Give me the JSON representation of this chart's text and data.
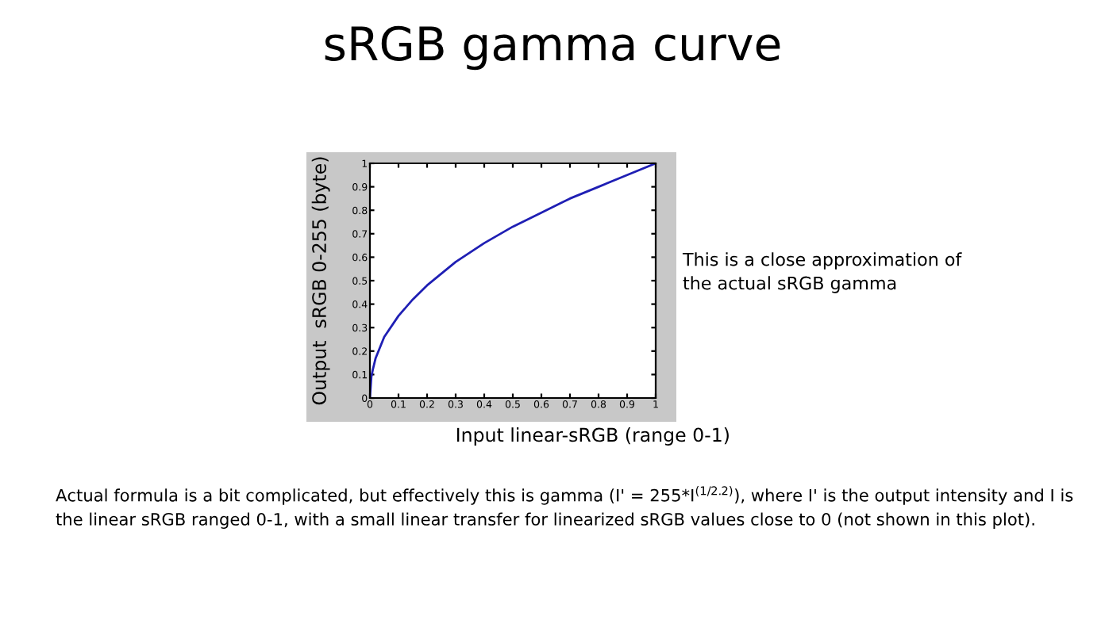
{
  "chart_data": {
    "type": "line",
    "title": "sRGB gamma curve",
    "xlabel": "Input linear-sRGB (range 0-1)",
    "ylabel": "Output  sRGB 0-255 (byte)",
    "x": [
      0,
      0.005,
      0.01,
      0.02,
      0.05,
      0.1,
      0.15,
      0.2,
      0.3,
      0.4,
      0.5,
      0.6,
      0.7,
      0.8,
      0.9,
      1
    ],
    "series": [
      {
        "color": "#1f1fb4",
        "values": [
          0,
          0.09,
          0.12,
          0.17,
          0.26,
          0.35,
          0.42,
          0.48,
          0.58,
          0.66,
          0.73,
          0.79,
          0.85,
          0.9,
          0.95,
          1
        ]
      }
    ],
    "xlim": [
      0,
      1
    ],
    "ylim": [
      0,
      1
    ],
    "xticks": [
      0,
      0.1,
      0.2,
      0.3,
      0.4,
      0.5,
      0.6,
      0.7,
      0.8,
      0.9,
      1
    ],
    "yticks": [
      0,
      0.1,
      0.2,
      0.3,
      0.4,
      0.5,
      0.6,
      0.7,
      0.8,
      0.9,
      1
    ],
    "grid": false,
    "marker": "none",
    "line_style": "solid",
    "annotations": [
      "This is a close approximation of\nthe actual sRGB gamma",
      "Actual formula is a bit complicated, but effectively this is gamma (I' = 255*I$^{(1/2.2)}$), where I' is the output intensity and I is the linear sRGB ranged 0-1, with a small linear transfer for linearized sRGB values close to 0 (not shown in this plot)."
    ]
  }
}
